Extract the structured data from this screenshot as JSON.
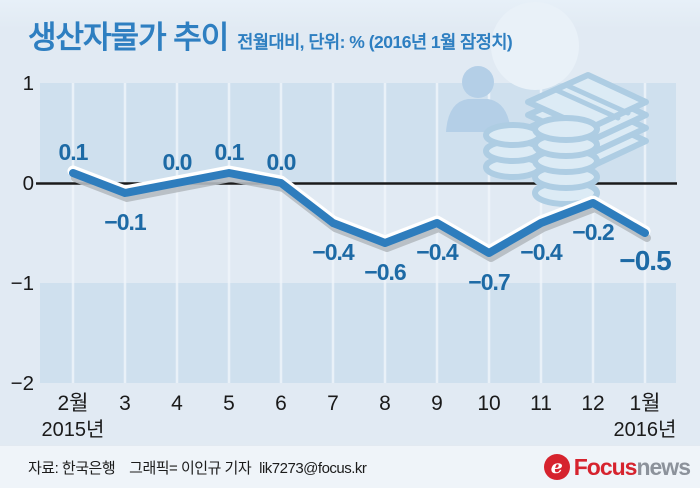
{
  "header": {
    "title": "생산자물가 추이",
    "subtitle": "전월대비, 단위: % (2016년 1월 잠정치)"
  },
  "chart_data": {
    "type": "line",
    "title": "생산자물가 추이",
    "subtitle": "전월대비, 단위: % (2016년 1월 잠정치)",
    "categories": [
      "2월",
      "3",
      "4",
      "5",
      "6",
      "7",
      "8",
      "9",
      "10",
      "11",
      "12",
      "1월"
    ],
    "values": [
      0.1,
      -0.1,
      0.0,
      0.1,
      0.0,
      -0.4,
      -0.6,
      -0.4,
      -0.7,
      -0.4,
      -0.2,
      -0.5
    ],
    "point_labels": [
      "0.1",
      "−0.1",
      "0.0",
      "0.1",
      "0.0",
      "−0.4",
      "−0.6",
      "−0.4",
      "−0.7",
      "−0.4",
      "−0.2",
      "−0.5"
    ],
    "year_labels": [
      {
        "index": 0,
        "label": "2015년"
      },
      {
        "index": 11,
        "label": "2016년"
      }
    ],
    "y_ticks": [
      {
        "value": 1,
        "label": "1"
      },
      {
        "value": 0,
        "label": "0"
      },
      {
        "value": -1,
        "label": "−1"
      },
      {
        "value": -2,
        "label": "−2"
      }
    ],
    "ylim": [
      -2,
      1
    ],
    "xlabel": "",
    "ylabel": "",
    "legend": "none",
    "grid": "vertical light gridlines, alternating horizontal bands",
    "series_color": "#2e7dbd",
    "point_label_color": "#1d6aa5",
    "band_color": "#cfe0ee",
    "zero_line_color": "#1b1b1b"
  },
  "decoration": {
    "money_icon": "money-stacks-icon",
    "person_icon": "person-silhouette-icon"
  },
  "footer": {
    "source": "자료: 한국은행",
    "credit": "그래픽= 이인규 기자",
    "email": "lik7273@focus.kr",
    "logo": {
      "symbol": "e",
      "brand": "Focus",
      "suffix": "news",
      "brand_color": "#d6232e",
      "suffix_color": "#8c929b"
    }
  }
}
